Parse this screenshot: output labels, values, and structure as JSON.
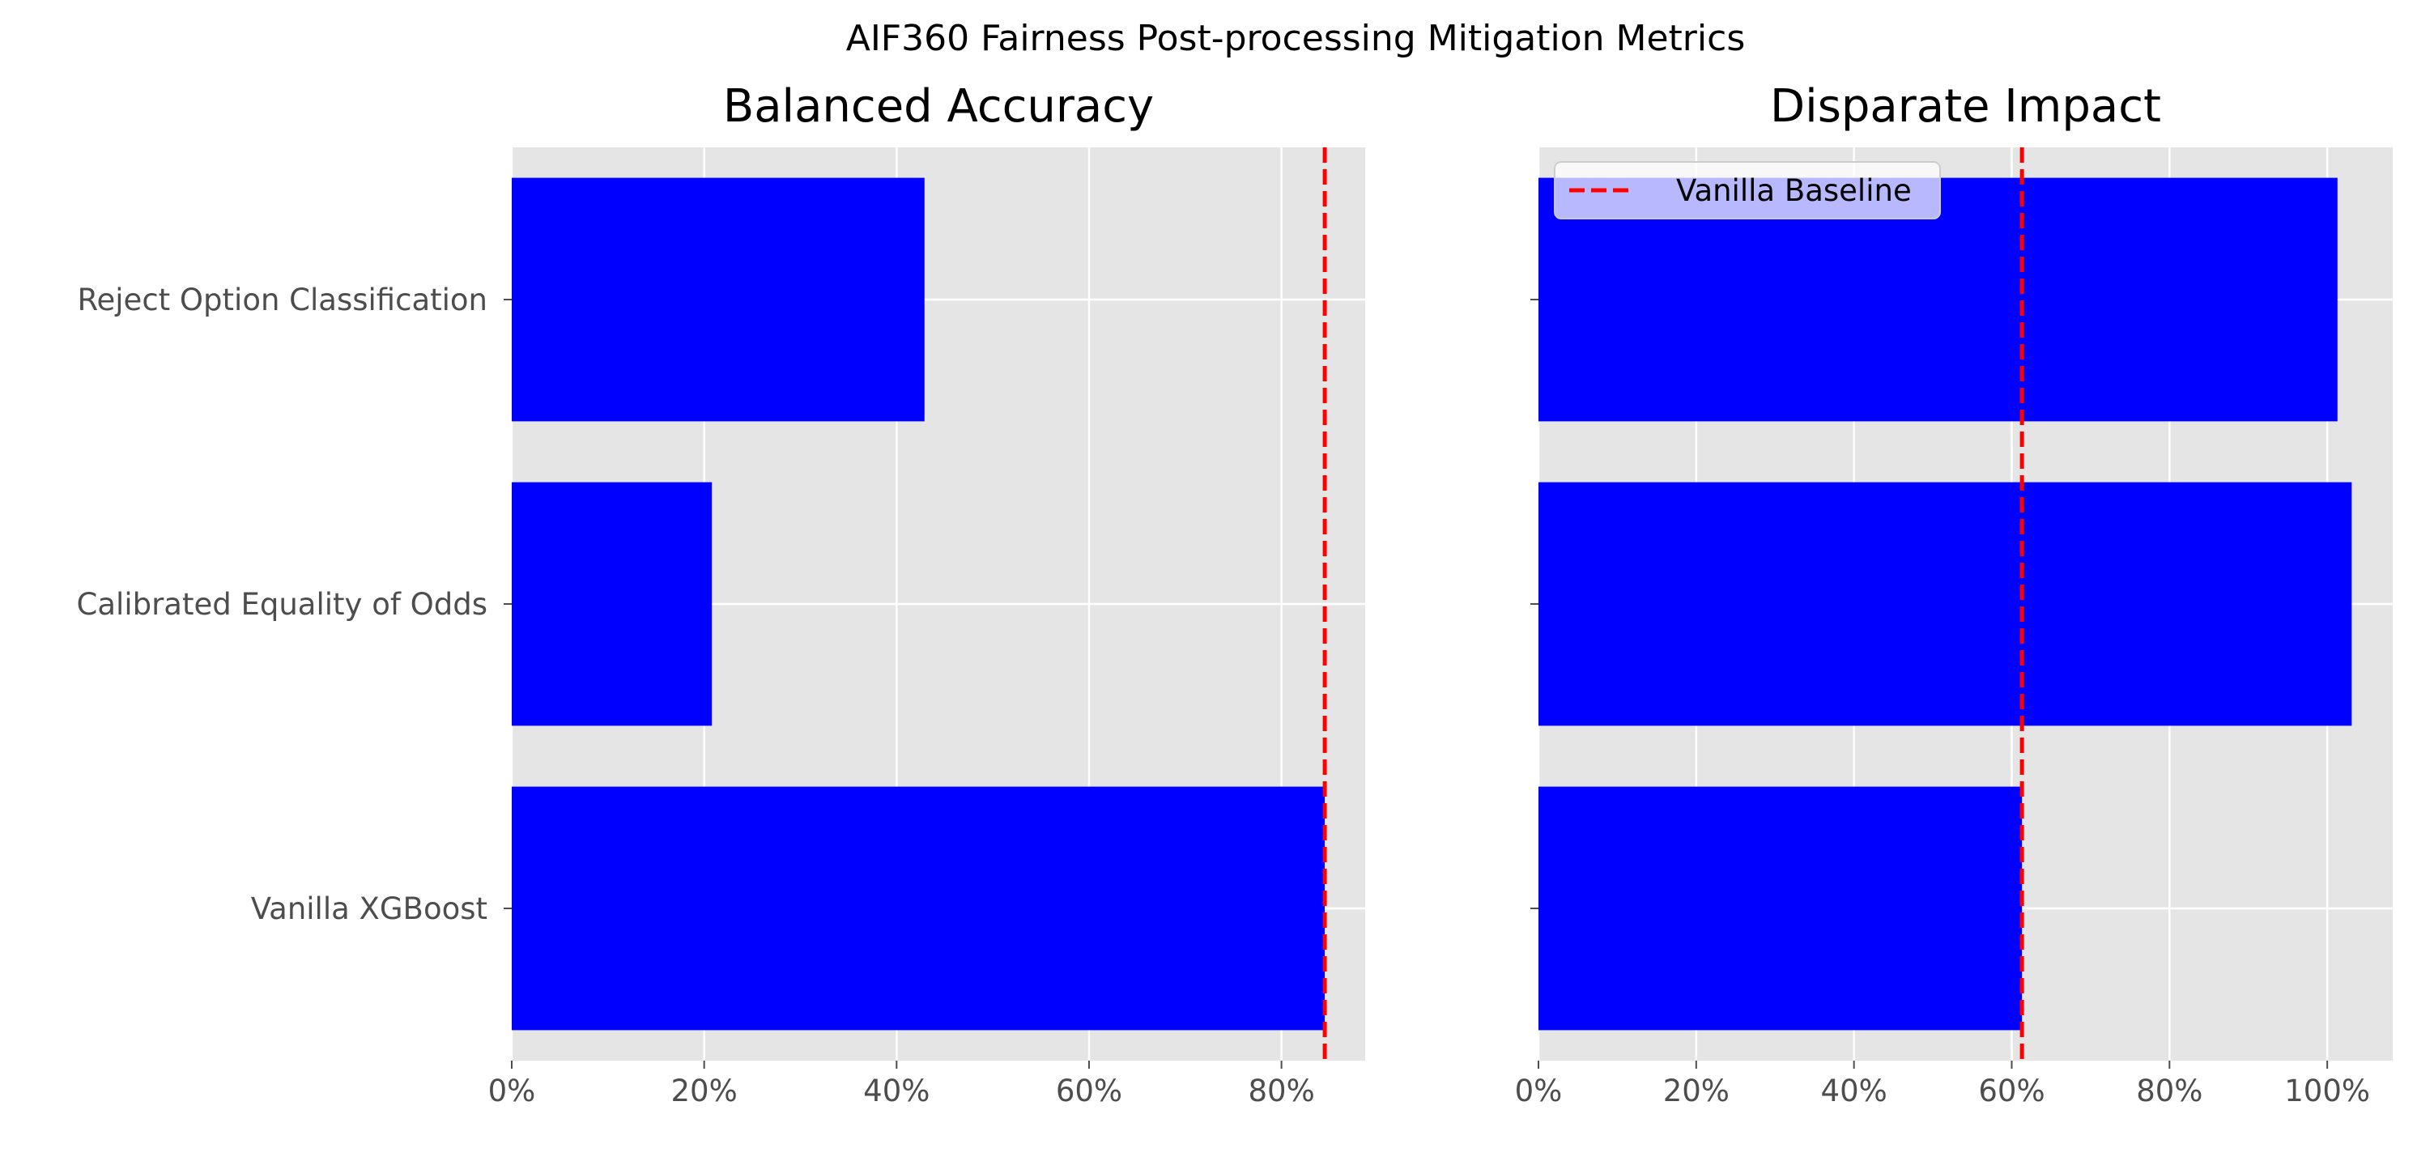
{
  "figure": {
    "suptitle": "AIF360 Fairness Post-processing Mitigation Metrics"
  },
  "chart_data": [
    {
      "type": "bar",
      "orientation": "horizontal",
      "title": "Balanced Accuracy",
      "xlabel": "",
      "ylabel": "",
      "categories": [
        "Vanilla XGBoost",
        "Calibrated Equality of Odds",
        "Reject Option Classification"
      ],
      "values": [
        0.845,
        0.208,
        0.429
      ],
      "xlim": [
        0,
        0.887
      ],
      "xticks": [
        0,
        0.2,
        0.4,
        0.6,
        0.8
      ],
      "xtick_labels": [
        "0%",
        "20%",
        "40%",
        "60%",
        "80%"
      ],
      "show_category_labels": true,
      "baseline": {
        "value": 0.845,
        "style": "dashed"
      },
      "bar_color": "#0000ff",
      "baseline_color": "#ff0000",
      "grid": true
    },
    {
      "type": "bar",
      "orientation": "horizontal",
      "title": "Disparate Impact",
      "xlabel": "",
      "ylabel": "",
      "categories": [
        "Vanilla XGBoost",
        "Calibrated Equality of Odds",
        "Reject Option Classification"
      ],
      "values": [
        0.613,
        1.031,
        1.013
      ],
      "xlim": [
        0,
        1.083
      ],
      "xticks": [
        0,
        0.2,
        0.4,
        0.6,
        0.8,
        1.0
      ],
      "xtick_labels": [
        "0%",
        "20%",
        "40%",
        "60%",
        "80%",
        "100%"
      ],
      "show_category_labels": false,
      "baseline": {
        "value": 0.613,
        "style": "dashed"
      },
      "bar_color": "#0000ff",
      "baseline_color": "#ff0000",
      "grid": true,
      "legend": {
        "position": "top-left",
        "entries": [
          {
            "label": "Vanilla Baseline",
            "style": "dashed",
            "color": "#ff0000"
          }
        ]
      }
    }
  ],
  "colors": {
    "axes_bg": "#e5e5e5",
    "grid": "#ffffff",
    "tick_text": "#4d4d4d",
    "title_text": "#000000"
  }
}
